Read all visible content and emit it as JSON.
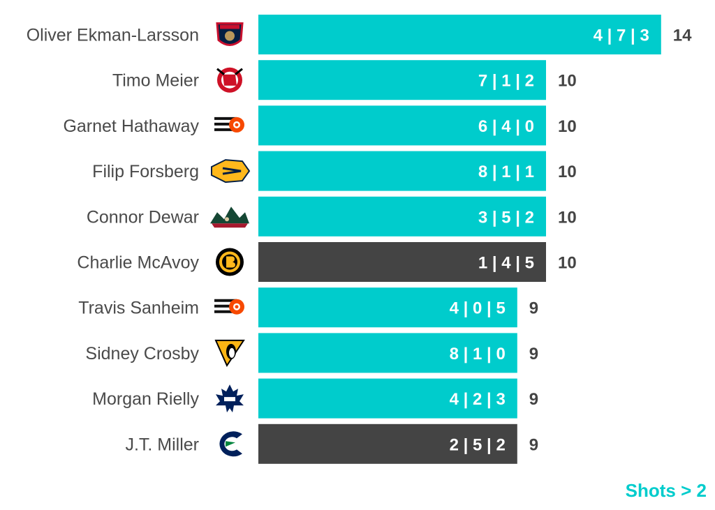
{
  "chart_data": {
    "type": "bar",
    "orientation": "horizontal",
    "categories": [
      "Oliver Ekman-Larsson",
      "Timo Meier",
      "Garnet Hathaway",
      "Filip Forsberg",
      "Connor Dewar",
      "Charlie McAvoy",
      "Travis Sanheim",
      "Sidney Crosby",
      "Morgan Rielly",
      "J.T. Miller"
    ],
    "values": [
      14,
      10,
      10,
      10,
      10,
      10,
      9,
      9,
      9,
      9
    ],
    "bar_labels": [
      "4 | 7 | 3",
      "7 | 1 | 2",
      "6 | 4 | 0",
      "8 | 1 | 1",
      "3 | 5 | 2",
      "1 | 4 | 5",
      "4 | 0 | 5",
      "8 | 1 | 0",
      "4 | 2 | 3",
      "2 | 5 | 2"
    ],
    "teams": [
      "florida-panthers",
      "new-jersey-devils",
      "philadelphia-flyers",
      "nashville-predators",
      "minnesota-wild",
      "boston-bruins",
      "philadelphia-flyers",
      "pittsburgh-penguins",
      "toronto-maple-leafs",
      "vancouver-canucks"
    ],
    "bar_colors": [
      "#00cccc",
      "#00cccc",
      "#00cccc",
      "#00cccc",
      "#00cccc",
      "#444444",
      "#00cccc",
      "#00cccc",
      "#00cccc",
      "#444444"
    ],
    "xlim": [
      0,
      14
    ],
    "grid": false,
    "legend": "none"
  },
  "footnote": "Shots > 2",
  "colors": {
    "accent": "#00cccc",
    "dark": "#444444"
  }
}
